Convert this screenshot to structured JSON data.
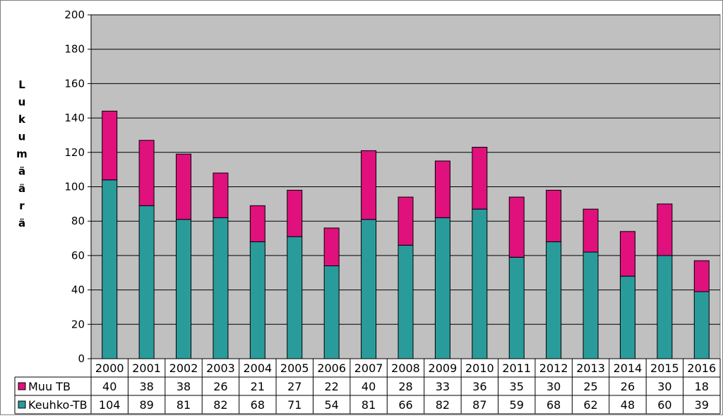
{
  "chart_data": {
    "type": "bar",
    "stacked": true,
    "title": "",
    "xlabel": "",
    "ylabel": "Lukumäärä",
    "ylim": [
      0,
      200
    ],
    "yticks": [
      0,
      20,
      40,
      60,
      80,
      100,
      120,
      140,
      160,
      180,
      200
    ],
    "grid": true,
    "legend": "data-table",
    "categories": [
      "2000",
      "2001",
      "2002",
      "2003",
      "2004",
      "2005",
      "2006",
      "2007",
      "2008",
      "2009",
      "2010",
      "2011",
      "2012",
      "2013",
      "2014",
      "2015",
      "2016"
    ],
    "series": [
      {
        "name": "Muu TB",
        "color": "#e0107d",
        "values": [
          40,
          38,
          38,
          26,
          21,
          27,
          22,
          40,
          28,
          33,
          36,
          35,
          30,
          25,
          26,
          30,
          18
        ]
      },
      {
        "name": "Keuhko-TB",
        "color": "#2a9b9b",
        "values": [
          104,
          89,
          81,
          82,
          68,
          71,
          54,
          81,
          66,
          82,
          87,
          59,
          68,
          62,
          48,
          60,
          39
        ]
      }
    ],
    "stack_order": [
      "Keuhko-TB",
      "Muu TB"
    ],
    "plot_background": "#c0c0c0"
  }
}
